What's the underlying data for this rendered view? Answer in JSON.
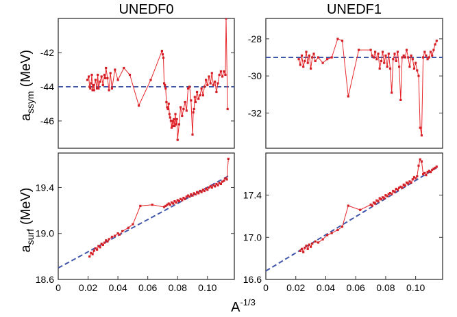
{
  "colors": {
    "data_line": "#e8262a",
    "data_marker": "#d31f26",
    "fit_line": "#3f55a8",
    "frame": "#333333"
  },
  "chart_data": [
    {
      "type": "line",
      "panel": "top-left",
      "title": "UNEDF0",
      "ylabel_main": "a",
      "ylabel_sub": "ssym",
      "ylabel_unit": "(MeV)",
      "ylim": [
        -47.6,
        -40.0
      ],
      "xlim": [
        0.0,
        0.118
      ],
      "yticks": [
        "-42",
        "-44",
        "-46"
      ],
      "ytick_values": [
        -42,
        -44,
        -46
      ],
      "fit": {
        "type": "horizontal",
        "y": -44.0
      },
      "series": [
        {
          "x": [
            0.0195,
            0.0205,
            0.021,
            0.0215,
            0.022,
            0.0225,
            0.023,
            0.0235,
            0.024,
            0.025,
            0.026,
            0.0265,
            0.027,
            0.028,
            0.029,
            0.03,
            0.031,
            0.0315,
            0.032,
            0.033,
            0.034,
            0.035,
            0.036,
            0.038,
            0.04,
            0.044,
            0.048,
            0.054,
            0.062,
            0.0695,
            0.07,
            0.0705,
            0.071,
            0.0715,
            0.072,
            0.0725,
            0.073,
            0.0735,
            0.074,
            0.0745,
            0.075,
            0.0755,
            0.076,
            0.0765,
            0.077,
            0.0775,
            0.078,
            0.0785,
            0.079,
            0.0795,
            0.08,
            0.081,
            0.082,
            0.083,
            0.084,
            0.085,
            0.086,
            0.087,
            0.088,
            0.089,
            0.09,
            0.0905,
            0.091,
            0.0915,
            0.092,
            0.093,
            0.094,
            0.095,
            0.096,
            0.097,
            0.098,
            0.099,
            0.1,
            0.101,
            0.102,
            0.103,
            0.104,
            0.105,
            0.106,
            0.107,
            0.108,
            0.109,
            0.11,
            0.111,
            0.112,
            0.1125,
            0.1135
          ],
          "y": [
            -43.6,
            -43.4,
            -44.0,
            -44.1,
            -43.8,
            -43.3,
            -44.2,
            -43.9,
            -44.2,
            -43.6,
            -44.1,
            -43.3,
            -44.1,
            -43.7,
            -43.4,
            -43.9,
            -43.3,
            -43.5,
            -42.9,
            -43.5,
            -44.2,
            -43.2,
            -44.1,
            -43.0,
            -43.6,
            -42.9,
            -43.3,
            -45.1,
            -43.6,
            -41.9,
            -42.1,
            -42.3,
            -43.8,
            -43.9,
            -44.1,
            -44.9,
            -45.2,
            -45.3,
            -45.0,
            -45.6,
            -45.8,
            -46.0,
            -46.4,
            -46.0,
            -46.3,
            -45.9,
            -46.3,
            -45.6,
            -46.2,
            -45.9,
            -47.1,
            -46.2,
            -45.2,
            -45.7,
            -45.3,
            -44.9,
            -45.4,
            -44.1,
            -44.0,
            -44.8,
            -46.8,
            -45.5,
            -45.3,
            -44.6,
            -44.9,
            -44.3,
            -44.7,
            -44.5,
            -44.1,
            -44.5,
            -44.0,
            -43.6,
            -43.9,
            -43.4,
            -43.8,
            -43.2,
            -43.9,
            -43.7,
            -44.3,
            -43.8,
            -43.3,
            -43.1,
            -43.4,
            -43.1,
            -43.3,
            -40.0,
            -45.3
          ]
        }
      ]
    },
    {
      "type": "line",
      "panel": "top-right",
      "title": "UNEDF1",
      "ylim": [
        -33.9,
        -26.9
      ],
      "xlim": [
        0.0,
        0.118
      ],
      "yticks": [
        "-28",
        "-30",
        "-32"
      ],
      "ytick_values": [
        -28,
        -30,
        -32
      ],
      "fit": {
        "type": "horizontal",
        "y": -29.0
      },
      "series": [
        {
          "x": [
            0.022,
            0.023,
            0.024,
            0.025,
            0.026,
            0.027,
            0.028,
            0.029,
            0.03,
            0.031,
            0.032,
            0.033,
            0.035,
            0.038,
            0.041,
            0.044,
            0.048,
            0.051,
            0.055,
            0.062,
            0.07,
            0.071,
            0.072,
            0.073,
            0.074,
            0.075,
            0.076,
            0.077,
            0.078,
            0.079,
            0.08,
            0.081,
            0.082,
            0.083,
            0.084,
            0.085,
            0.086,
            0.087,
            0.088,
            0.089,
            0.09,
            0.091,
            0.092,
            0.093,
            0.094,
            0.095,
            0.096,
            0.097,
            0.098,
            0.099,
            0.1,
            0.101,
            0.102,
            0.103,
            0.104,
            0.105,
            0.106,
            0.107,
            0.108,
            0.109,
            0.11,
            0.111,
            0.112,
            0.113,
            0.114
          ],
          "y": [
            -29.1,
            -29.4,
            -28.9,
            -29.5,
            -29.2,
            -28.7,
            -29.3,
            -28.9,
            -29.6,
            -29.0,
            -28.8,
            -29.2,
            -29.0,
            -29.3,
            -29.1,
            -29.0,
            -28.0,
            -28.1,
            -31.1,
            -28.6,
            -28.6,
            -28.9,
            -29.0,
            -28.7,
            -29.1,
            -28.8,
            -29.6,
            -29.2,
            -28.7,
            -29.3,
            -28.9,
            -29.5,
            -28.8,
            -29.6,
            -30.9,
            -29.1,
            -28.8,
            -29.2,
            -28.7,
            -29.5,
            -31.3,
            -29.0,
            -28.9,
            -29.0,
            -28.6,
            -29.0,
            -29.5,
            -28.9,
            -29.1,
            -29.6,
            -29.3,
            -29.7,
            -30.0,
            -32.8,
            -33.2,
            -29.0,
            -28.7,
            -28.9,
            -29.1,
            -29.0,
            -28.7,
            -28.9,
            -28.6,
            -28.3,
            -28.1
          ]
        }
      ]
    },
    {
      "type": "line",
      "panel": "bottom-left",
      "ylabel_main": "a",
      "ylabel_sub": "surf",
      "ylabel_unit": "(MeV)",
      "ylim": [
        18.6,
        19.7
      ],
      "xlim": [
        0.0,
        0.118
      ],
      "yticks": [
        "18.6",
        "19.0",
        "19.4"
      ],
      "ytick_values": [
        18.6,
        19.0,
        19.4
      ],
      "xticks": [
        "0",
        "0.02",
        "0.04",
        "0.06",
        "0.08",
        "0.10"
      ],
      "xtick_values": [
        0,
        0.02,
        0.04,
        0.06,
        0.08,
        0.1
      ],
      "fit": {
        "type": "linear",
        "x": [
          0.0,
          0.114
        ],
        "y": [
          18.7,
          19.5
        ]
      },
      "series": [
        {
          "x": [
            0.021,
            0.022,
            0.023,
            0.024,
            0.025,
            0.026,
            0.027,
            0.028,
            0.029,
            0.03,
            0.031,
            0.032,
            0.033,
            0.034,
            0.036,
            0.038,
            0.04,
            0.041,
            0.043,
            0.047,
            0.05,
            0.055,
            0.063,
            0.071,
            0.072,
            0.073,
            0.074,
            0.075,
            0.076,
            0.077,
            0.078,
            0.079,
            0.08,
            0.081,
            0.082,
            0.083,
            0.084,
            0.085,
            0.086,
            0.087,
            0.088,
            0.089,
            0.09,
            0.091,
            0.092,
            0.093,
            0.094,
            0.095,
            0.096,
            0.097,
            0.098,
            0.099,
            0.1,
            0.101,
            0.102,
            0.103,
            0.104,
            0.105,
            0.106,
            0.107,
            0.108,
            0.109,
            0.11,
            0.111,
            0.112,
            0.113,
            0.114
          ],
          "y": [
            18.8,
            18.83,
            18.82,
            18.85,
            18.87,
            18.86,
            18.89,
            18.88,
            18.91,
            18.9,
            18.92,
            18.94,
            18.93,
            18.95,
            18.97,
            18.98,
            19.0,
            18.99,
            19.02,
            19.05,
            19.08,
            19.24,
            19.25,
            19.23,
            19.24,
            19.25,
            19.26,
            19.25,
            19.27,
            19.26,
            19.28,
            19.27,
            19.29,
            19.28,
            19.3,
            19.29,
            19.31,
            19.3,
            19.32,
            19.33,
            19.32,
            19.34,
            19.33,
            19.35,
            19.34,
            19.36,
            19.35,
            19.37,
            19.36,
            19.38,
            19.37,
            19.39,
            19.38,
            19.4,
            19.41,
            19.4,
            19.42,
            19.41,
            19.43,
            19.42,
            19.44,
            19.43,
            19.45,
            19.46,
            19.48,
            19.47,
            19.65
          ]
        }
      ]
    },
    {
      "type": "line",
      "panel": "bottom-right",
      "ylim": [
        16.6,
        17.8
      ],
      "xlim": [
        0.0,
        0.118
      ],
      "yticks": [
        "16.6",
        "17.0",
        "17.4"
      ],
      "ytick_values": [
        16.6,
        17.0,
        17.4
      ],
      "xticks": [
        "0",
        "0.02",
        "0.04",
        "0.06",
        "0.08",
        "0.10"
      ],
      "xtick_values": [
        0,
        0.02,
        0.04,
        0.06,
        0.08,
        0.1
      ],
      "xlabel_main": "A",
      "xlabel_sup": "-1/3",
      "fit": {
        "type": "linear",
        "x": [
          0.0,
          0.114
        ],
        "y": [
          16.68,
          17.66
        ]
      },
      "series": [
        {
          "x": [
            0.023,
            0.024,
            0.025,
            0.026,
            0.027,
            0.028,
            0.029,
            0.03,
            0.031,
            0.033,
            0.035,
            0.038,
            0.041,
            0.044,
            0.048,
            0.051,
            0.055,
            0.063,
            0.07,
            0.071,
            0.072,
            0.073,
            0.074,
            0.075,
            0.076,
            0.077,
            0.078,
            0.079,
            0.08,
            0.081,
            0.082,
            0.083,
            0.084,
            0.085,
            0.086,
            0.087,
            0.088,
            0.089,
            0.09,
            0.091,
            0.092,
            0.093,
            0.094,
            0.095,
            0.096,
            0.097,
            0.098,
            0.099,
            0.1,
            0.101,
            0.102,
            0.103,
            0.104,
            0.105,
            0.106,
            0.107,
            0.108,
            0.109,
            0.11,
            0.111,
            0.112,
            0.113,
            0.114
          ],
          "y": [
            16.87,
            16.89,
            16.86,
            16.9,
            16.92,
            16.89,
            16.93,
            16.91,
            16.94,
            16.96,
            16.95,
            16.98,
            17.02,
            17.04,
            17.07,
            17.1,
            17.3,
            17.26,
            17.31,
            17.3,
            17.33,
            17.32,
            17.35,
            17.34,
            17.37,
            17.36,
            17.38,
            17.37,
            17.4,
            17.39,
            17.41,
            17.42,
            17.41,
            17.44,
            17.43,
            17.46,
            17.45,
            17.47,
            17.48,
            17.47,
            17.5,
            17.49,
            17.52,
            17.51,
            17.53,
            17.52,
            17.55,
            17.57,
            17.56,
            17.58,
            17.68,
            17.74,
            17.72,
            17.6,
            17.61,
            17.59,
            17.62,
            17.63,
            17.62,
            17.64,
            17.65,
            17.66,
            17.67
          ]
        }
      ]
    }
  ]
}
